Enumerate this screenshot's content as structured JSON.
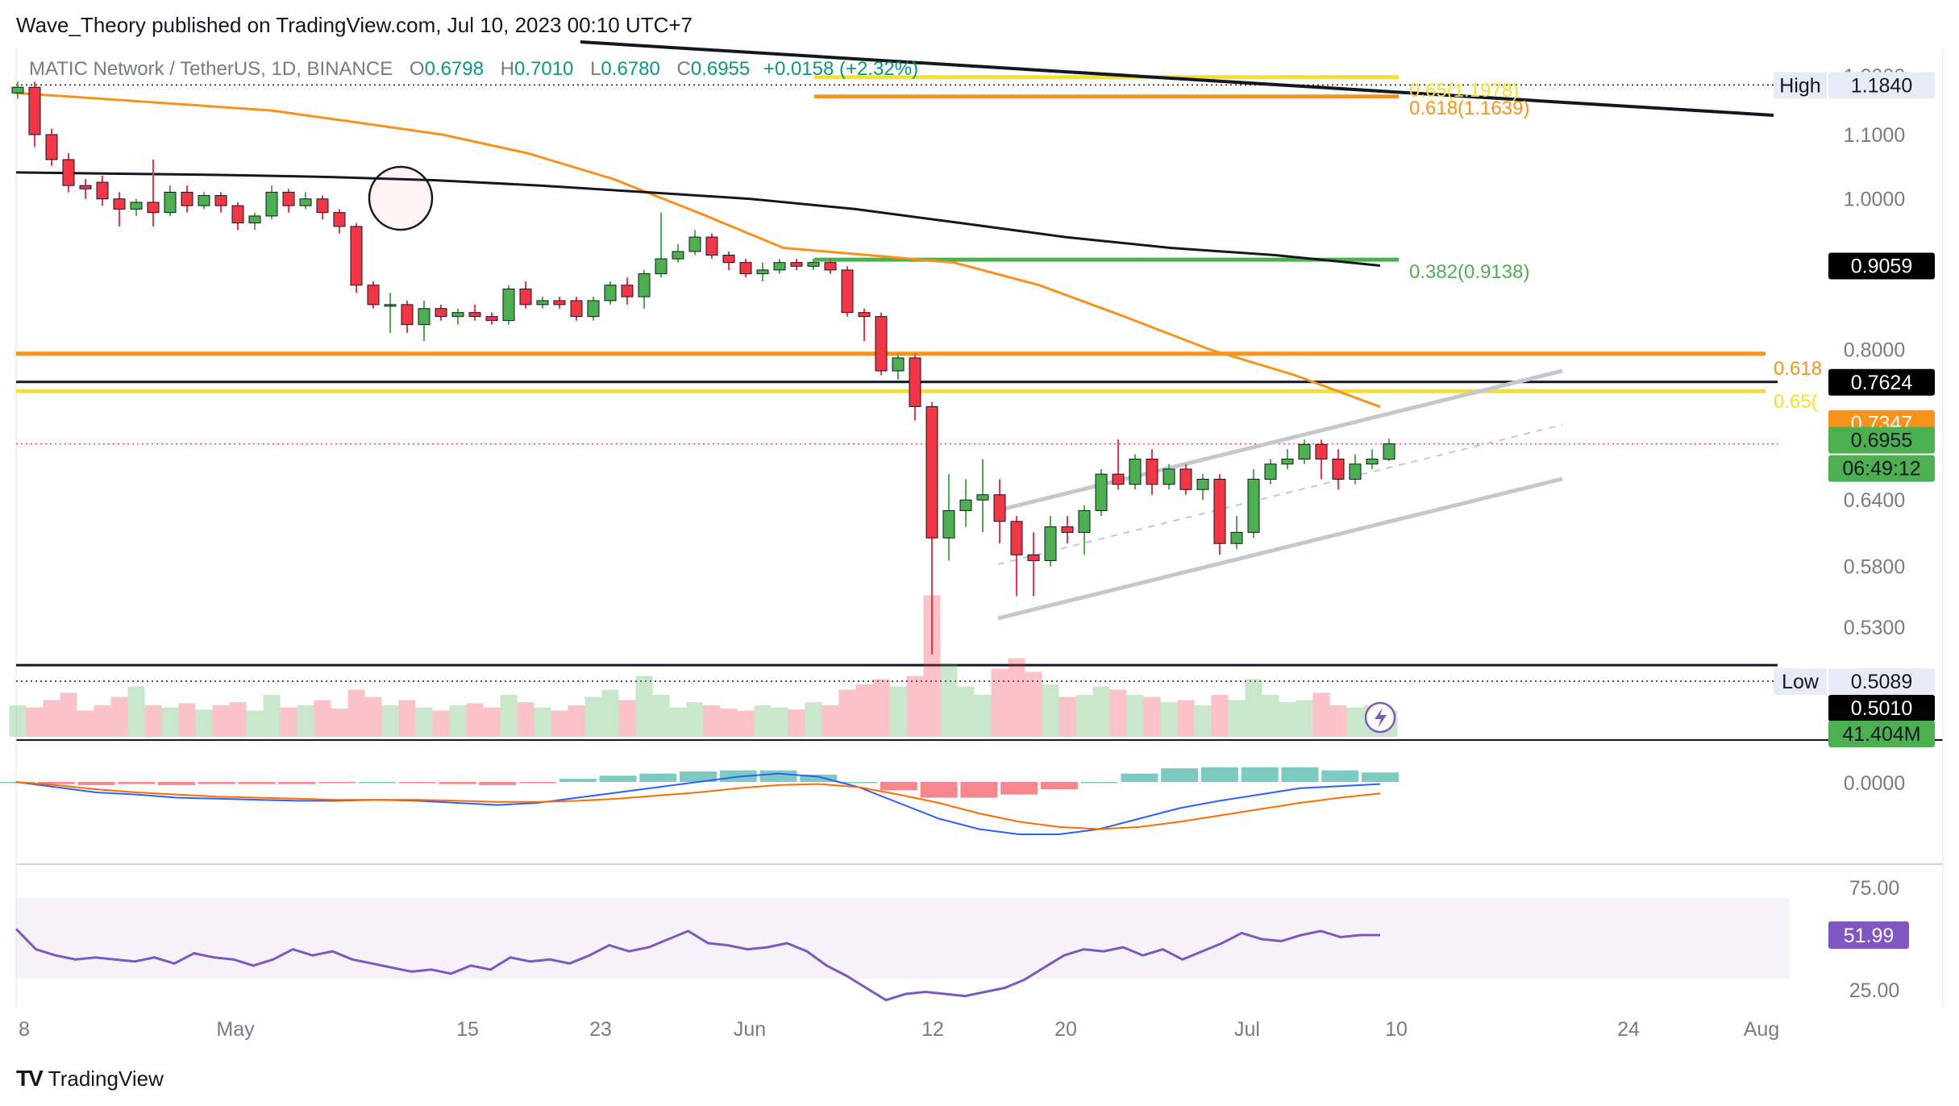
{
  "header": {
    "publisher": "Wave_Theory published on TradingView.com, Jul 10, 2023 00:10 UTC+7",
    "symbol": "MATIC Network / TetherUS, 1D, BINANCE",
    "ohlc": [
      {
        "k": "O",
        "v": "0.6798"
      },
      {
        "k": "H",
        "v": "0.7010"
      },
      {
        "k": "L",
        "v": "0.6780"
      },
      {
        "k": "C",
        "v": "0.6955"
      }
    ],
    "change": "+0.0158 (+2.32%)"
  },
  "footer": {
    "logo": "TV",
    "brand": "TradingView"
  },
  "colors": {
    "up": "#4caf50",
    "down": "#f23645",
    "orange": "#f7931a",
    "yellow": "#f5e02d",
    "green_line": "#4caf50",
    "black": "#131722",
    "channel": "#c5c7ce",
    "rsi": "#7e57c2",
    "macd": "#2962ff",
    "signal": "#ff6d00"
  },
  "price_axis": {
    "ticks": [
      "1.2000",
      "1.1840",
      "1.1000",
      "1.0000",
      "0.8000",
      "0.6400",
      "0.5800",
      "0.5300"
    ],
    "tags": [
      {
        "label": "High",
        "value": "1.1840",
        "style": "light",
        "price": 1.184
      },
      {
        "label": "",
        "value": "0.9059",
        "style": "black",
        "price": 0.9059
      },
      {
        "label": "",
        "value": "0.7624",
        "style": "black",
        "price": 0.7624
      },
      {
        "label": "",
        "value": "0.7347",
        "style": "orange",
        "price": 0.7347
      },
      {
        "label": "",
        "value": "0.6955",
        "style": "green",
        "price": 0.6955
      },
      {
        "label": "",
        "value": "06:49:12",
        "style": "green",
        "price": 0.6955
      },
      {
        "label": "Low",
        "value": "0.5089",
        "style": "light",
        "price": 0.5089
      },
      {
        "label": "",
        "value": "0.5010",
        "style": "black",
        "price": 0.501
      },
      {
        "label": "",
        "value": "41.404M",
        "style": "green",
        "price": 0.47
      }
    ]
  },
  "fib_labels": [
    {
      "text": "0.65(1.1978)",
      "color": "#f5e02d",
      "price": 1.1978
    },
    {
      "text": "0.618(1.1639)",
      "color": "#f7931a",
      "price": 1.1639
    },
    {
      "text": "0.382(0.9138)",
      "color": "#4caf50",
      "price": 0.9138
    },
    {
      "text": "0.618",
      "color": "#f7931a",
      "price": 0.795
    },
    {
      "text": "0.65(",
      "color": "#f5e02d",
      "price": 0.76
    }
  ],
  "time_axis": [
    "8",
    "May",
    "15",
    "23",
    "Jun",
    "12",
    "20",
    "Jul",
    "10",
    "24",
    "Aug"
  ],
  "macd_axis": [
    "0.0000"
  ],
  "rsi_axis": [
    "75.00",
    "51.99",
    "25.00"
  ],
  "chart_data": {
    "type": "candlestick",
    "title": "MATIC Network / TetherUS, 1D, BINANCE",
    "candles": [
      {
        "o": 1.17,
        "h": 1.19,
        "l": 1.16,
        "c": 1.18
      },
      {
        "o": 1.18,
        "h": 1.19,
        "l": 1.08,
        "c": 1.1
      },
      {
        "o": 1.1,
        "h": 1.11,
        "l": 1.05,
        "c": 1.06
      },
      {
        "o": 1.06,
        "h": 1.07,
        "l": 1.01,
        "c": 1.02
      },
      {
        "o": 1.02,
        "h": 1.03,
        "l": 1.0,
        "c": 1.015
      },
      {
        "o": 1.025,
        "h": 1.035,
        "l": 0.99,
        "c": 1.0
      },
      {
        "o": 1.0,
        "h": 1.01,
        "l": 0.96,
        "c": 0.985
      },
      {
        "o": 0.985,
        "h": 1.0,
        "l": 0.975,
        "c": 0.995
      },
      {
        "o": 0.995,
        "h": 1.06,
        "l": 0.96,
        "c": 0.98
      },
      {
        "o": 0.98,
        "h": 1.02,
        "l": 0.975,
        "c": 1.01
      },
      {
        "o": 1.01,
        "h": 1.02,
        "l": 0.98,
        "c": 0.99
      },
      {
        "o": 0.99,
        "h": 1.01,
        "l": 0.985,
        "c": 1.005
      },
      {
        "o": 1.005,
        "h": 1.01,
        "l": 0.98,
        "c": 0.99
      },
      {
        "o": 0.99,
        "h": 0.995,
        "l": 0.955,
        "c": 0.965
      },
      {
        "o": 0.965,
        "h": 0.98,
        "l": 0.955,
        "c": 0.975
      },
      {
        "o": 0.975,
        "h": 1.02,
        "l": 0.97,
        "c": 1.01
      },
      {
        "o": 1.01,
        "h": 1.015,
        "l": 0.98,
        "c": 0.99
      },
      {
        "o": 0.99,
        "h": 1.01,
        "l": 0.985,
        "c": 1.0
      },
      {
        "o": 1.0,
        "h": 1.005,
        "l": 0.97,
        "c": 0.98
      },
      {
        "o": 0.98,
        "h": 0.985,
        "l": 0.95,
        "c": 0.96
      },
      {
        "o": 0.96,
        "h": 0.965,
        "l": 0.87,
        "c": 0.88
      },
      {
        "o": 0.88,
        "h": 0.885,
        "l": 0.85,
        "c": 0.855
      },
      {
        "o": 0.855,
        "h": 0.87,
        "l": 0.82,
        "c": 0.855
      },
      {
        "o": 0.855,
        "h": 0.86,
        "l": 0.82,
        "c": 0.83
      },
      {
        "o": 0.83,
        "h": 0.86,
        "l": 0.81,
        "c": 0.85
      },
      {
        "o": 0.85,
        "h": 0.855,
        "l": 0.835,
        "c": 0.84
      },
      {
        "o": 0.84,
        "h": 0.85,
        "l": 0.83,
        "c": 0.845
      },
      {
        "o": 0.845,
        "h": 0.855,
        "l": 0.835,
        "c": 0.84
      },
      {
        "o": 0.84,
        "h": 0.845,
        "l": 0.83,
        "c": 0.835
      },
      {
        "o": 0.835,
        "h": 0.88,
        "l": 0.83,
        "c": 0.875
      },
      {
        "o": 0.875,
        "h": 0.885,
        "l": 0.85,
        "c": 0.855
      },
      {
        "o": 0.855,
        "h": 0.865,
        "l": 0.85,
        "c": 0.86
      },
      {
        "o": 0.86,
        "h": 0.865,
        "l": 0.85,
        "c": 0.855
      },
      {
        "o": 0.86,
        "h": 0.865,
        "l": 0.835,
        "c": 0.84
      },
      {
        "o": 0.84,
        "h": 0.865,
        "l": 0.835,
        "c": 0.86
      },
      {
        "o": 0.86,
        "h": 0.885,
        "l": 0.855,
        "c": 0.88
      },
      {
        "o": 0.88,
        "h": 0.89,
        "l": 0.855,
        "c": 0.865
      },
      {
        "o": 0.865,
        "h": 0.9,
        "l": 0.85,
        "c": 0.895
      },
      {
        "o": 0.895,
        "h": 0.98,
        "l": 0.89,
        "c": 0.915
      },
      {
        "o": 0.915,
        "h": 0.935,
        "l": 0.91,
        "c": 0.925
      },
      {
        "o": 0.925,
        "h": 0.955,
        "l": 0.92,
        "c": 0.945
      },
      {
        "o": 0.945,
        "h": 0.95,
        "l": 0.915,
        "c": 0.92
      },
      {
        "o": 0.92,
        "h": 0.925,
        "l": 0.9,
        "c": 0.91
      },
      {
        "o": 0.91,
        "h": 0.915,
        "l": 0.89,
        "c": 0.895
      },
      {
        "o": 0.895,
        "h": 0.91,
        "l": 0.885,
        "c": 0.9
      },
      {
        "o": 0.9,
        "h": 0.915,
        "l": 0.895,
        "c": 0.91
      },
      {
        "o": 0.91,
        "h": 0.915,
        "l": 0.9,
        "c": 0.905
      },
      {
        "o": 0.905,
        "h": 0.915,
        "l": 0.9,
        "c": 0.91
      },
      {
        "o": 0.91,
        "h": 0.915,
        "l": 0.895,
        "c": 0.9
      },
      {
        "o": 0.9,
        "h": 0.905,
        "l": 0.84,
        "c": 0.845
      },
      {
        "o": 0.845,
        "h": 0.85,
        "l": 0.81,
        "c": 0.84
      },
      {
        "o": 0.84,
        "h": 0.845,
        "l": 0.77,
        "c": 0.775
      },
      {
        "o": 0.775,
        "h": 0.795,
        "l": 0.765,
        "c": 0.79
      },
      {
        "o": 0.79,
        "h": 0.795,
        "l": 0.72,
        "c": 0.735
      },
      {
        "o": 0.735,
        "h": 0.74,
        "l": 0.5089,
        "c": 0.605
      },
      {
        "o": 0.605,
        "h": 0.665,
        "l": 0.585,
        "c": 0.63
      },
      {
        "o": 0.63,
        "h": 0.66,
        "l": 0.615,
        "c": 0.64
      },
      {
        "o": 0.64,
        "h": 0.68,
        "l": 0.61,
        "c": 0.645
      },
      {
        "o": 0.645,
        "h": 0.66,
        "l": 0.6,
        "c": 0.62
      },
      {
        "o": 0.62,
        "h": 0.625,
        "l": 0.555,
        "c": 0.59
      },
      {
        "o": 0.59,
        "h": 0.61,
        "l": 0.555,
        "c": 0.585
      },
      {
        "o": 0.585,
        "h": 0.625,
        "l": 0.58,
        "c": 0.615
      },
      {
        "o": 0.615,
        "h": 0.625,
        "l": 0.6,
        "c": 0.61
      },
      {
        "o": 0.61,
        "h": 0.635,
        "l": 0.59,
        "c": 0.63
      },
      {
        "o": 0.63,
        "h": 0.67,
        "l": 0.625,
        "c": 0.665
      },
      {
        "o": 0.665,
        "h": 0.7,
        "l": 0.65,
        "c": 0.655
      },
      {
        "o": 0.655,
        "h": 0.685,
        "l": 0.65,
        "c": 0.68
      },
      {
        "o": 0.68,
        "h": 0.69,
        "l": 0.645,
        "c": 0.655
      },
      {
        "o": 0.655,
        "h": 0.675,
        "l": 0.65,
        "c": 0.67
      },
      {
        "o": 0.67,
        "h": 0.675,
        "l": 0.645,
        "c": 0.65
      },
      {
        "o": 0.65,
        "h": 0.665,
        "l": 0.64,
        "c": 0.66
      },
      {
        "o": 0.66,
        "h": 0.665,
        "l": 0.59,
        "c": 0.6
      },
      {
        "o": 0.6,
        "h": 0.625,
        "l": 0.595,
        "c": 0.61
      },
      {
        "o": 0.61,
        "h": 0.67,
        "l": 0.605,
        "c": 0.66
      },
      {
        "o": 0.66,
        "h": 0.68,
        "l": 0.655,
        "c": 0.675
      },
      {
        "o": 0.675,
        "h": 0.69,
        "l": 0.67,
        "c": 0.68
      },
      {
        "o": 0.68,
        "h": 0.7,
        "l": 0.675,
        "c": 0.695
      },
      {
        "o": 0.695,
        "h": 0.7,
        "l": 0.66,
        "c": 0.68
      },
      {
        "o": 0.68,
        "h": 0.69,
        "l": 0.65,
        "c": 0.66
      },
      {
        "o": 0.66,
        "h": 0.685,
        "l": 0.655,
        "c": 0.675
      },
      {
        "o": 0.675,
        "h": 0.69,
        "l": 0.67,
        "c": 0.68
      },
      {
        "o": 0.6798,
        "h": 0.701,
        "l": 0.678,
        "c": 0.6955
      }
    ],
    "ema_orange": [
      1.17,
      1.16,
      1.15,
      1.14,
      1.12,
      1.1,
      1.07,
      1.03,
      0.98,
      0.93,
      0.92,
      0.91,
      0.88,
      0.84,
      0.8,
      0.77,
      0.7347
    ],
    "ma_black": [
      1.04,
      1.038,
      1.036,
      1.033,
      1.028,
      1.02,
      1.01,
      1.0,
      0.985,
      0.965,
      0.945,
      0.93,
      0.92,
      0.9059
    ],
    "levels": [
      {
        "name": "fib-0.65-upper",
        "price": 1.1978,
        "color": "#f5e02d"
      },
      {
        "name": "fib-0.618-upper",
        "price": 1.1639,
        "color": "#f7931a"
      },
      {
        "name": "fib-0.382",
        "price": 0.9138,
        "color": "#4caf50"
      },
      {
        "name": "fib-0.618",
        "price": 0.795,
        "color": "#f7931a"
      },
      {
        "name": "support-resistance",
        "price": 0.7624,
        "color": "#131722"
      },
      {
        "name": "fib-0.65",
        "price": 0.752,
        "color": "#f5e02d"
      },
      {
        "name": "low-line",
        "price": 0.501,
        "color": "#131722"
      }
    ],
    "volume": [
      30,
      28,
      35,
      42,
      25,
      30,
      38,
      48,
      30,
      28,
      32,
      26,
      30,
      33,
      25,
      40,
      28,
      30,
      35,
      27,
      45,
      38,
      30,
      35,
      28,
      25,
      30,
      32,
      28,
      40,
      33,
      28,
      25,
      30,
      38,
      45,
      35,
      58,
      40,
      28,
      33,
      30,
      27,
      25,
      30,
      28,
      26,
      33,
      30,
      45,
      50,
      55,
      48,
      58,
      135,
      70,
      48,
      40,
      65,
      75,
      62,
      50,
      38,
      40,
      48,
      45,
      40,
      38,
      33,
      35,
      30,
      40,
      35,
      55,
      40,
      33,
      35,
      42,
      30,
      28,
      30,
      25
    ],
    "macd": [
      0.0,
      -0.005,
      -0.01,
      -0.012,
      -0.015,
      -0.016,
      -0.017,
      -0.018,
      -0.018,
      -0.017,
      -0.018,
      -0.02,
      -0.022,
      -0.02,
      -0.015,
      -0.01,
      -0.005,
      0.0,
      0.005,
      0.008,
      0.005,
      -0.005,
      -0.02,
      -0.035,
      -0.045,
      -0.05,
      -0.05,
      -0.045,
      -0.035,
      -0.025,
      -0.018,
      -0.012,
      -0.006,
      -0.004,
      -0.002
    ],
    "macd_signal": [
      0.0,
      -0.003,
      -0.007,
      -0.01,
      -0.012,
      -0.014,
      -0.015,
      -0.016,
      -0.017,
      -0.017,
      -0.017,
      -0.018,
      -0.019,
      -0.019,
      -0.018,
      -0.016,
      -0.013,
      -0.01,
      -0.006,
      -0.003,
      -0.002,
      -0.005,
      -0.012,
      -0.02,
      -0.03,
      -0.038,
      -0.043,
      -0.045,
      -0.043,
      -0.038,
      -0.032,
      -0.026,
      -0.02,
      -0.015,
      -0.011
    ],
    "rsi": [
      55,
      45,
      42,
      40,
      41,
      40,
      39,
      41,
      38,
      43,
      41,
      40,
      37,
      40,
      45,
      42,
      44,
      40,
      38,
      36,
      34,
      35,
      33,
      37,
      35,
      41,
      39,
      40,
      38,
      42,
      47,
      44,
      46,
      50,
      54,
      48,
      47,
      45,
      46,
      48,
      44,
      37,
      32,
      26,
      20,
      23,
      24,
      23,
      22,
      24,
      26,
      30,
      36,
      42,
      45,
      44,
      46,
      42,
      45,
      40,
      44,
      48,
      53,
      50,
      49,
      52,
      54,
      51,
      52,
      51.99
    ],
    "rsi_range": [
      25,
      75
    ],
    "price_range": [
      0.45,
      1.25
    ]
  }
}
